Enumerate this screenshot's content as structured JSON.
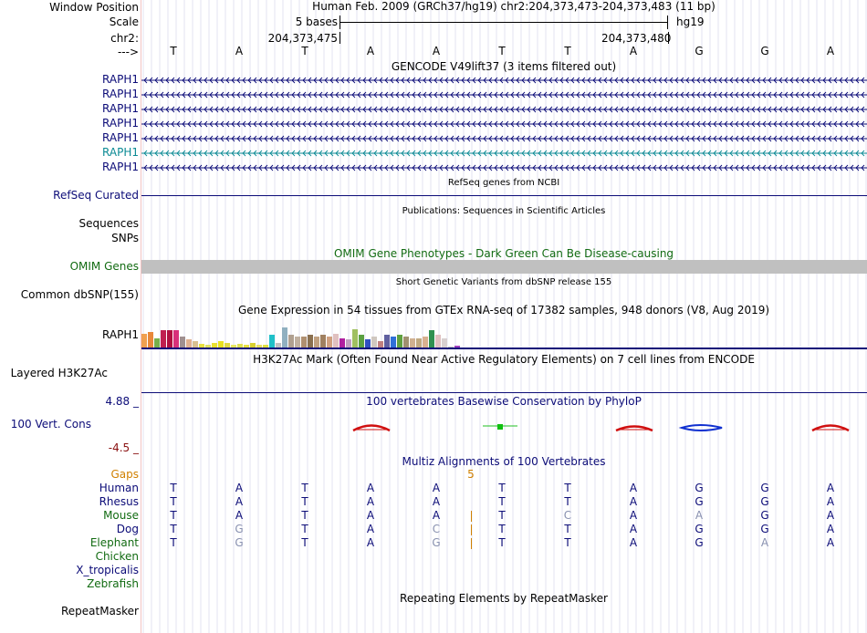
{
  "header": {
    "window_position_label": "Window Position",
    "scale_label": "Scale",
    "chrom_label": "chr2:",
    "arrow_label": "--->",
    "assembly_title": "Human Feb. 2009 (GRCh37/hg19)   chr2:204,373,473-204,373,483 (11 bp)",
    "scale_value": "5 bases",
    "scale_db": "hg19",
    "coord_left": "204,373,475",
    "coord_right": "204,373,480",
    "bases": [
      "T",
      "A",
      "T",
      "A",
      "A",
      "T",
      "T",
      "A",
      "G",
      "G",
      "A"
    ]
  },
  "gencode": {
    "title": "GENCODE V49lift37 (3 items filtered out)",
    "rows": [
      {
        "label": "RAPH1",
        "color": "#0c0c78"
      },
      {
        "label": "RAPH1",
        "color": "#0c0c78"
      },
      {
        "label": "RAPH1",
        "color": "#0c0c78"
      },
      {
        "label": "RAPH1",
        "color": "#0c0c78"
      },
      {
        "label": "RAPH1",
        "color": "#0c0c78"
      },
      {
        "label": "RAPH1",
        "color": "#0b8a94"
      },
      {
        "label": "RAPH1",
        "color": "#0c0c78"
      }
    ]
  },
  "refseq": {
    "label": "RefSeq Curated",
    "title": "RefSeq genes from NCBI"
  },
  "publications": {
    "title": "Publications: Sequences in Scientific Articles",
    "label_sequences": "Sequences",
    "label_snps": "SNPs"
  },
  "omim": {
    "title": "OMIM Gene Phenotypes - Dark Green Can Be Disease-causing",
    "label": "OMIM Genes"
  },
  "dbsnp": {
    "title": "Short Genetic Variants from dbSNP release 155",
    "label": "Common dbSNP(155)"
  },
  "gtex": {
    "title": "Gene Expression in 54 tissues from GTEx RNA-seq of 17382 samples, 948 donors (V8, Aug 2019)",
    "label": "RAPH1",
    "bars": [
      {
        "v": 0.45,
        "c": "#f0a050"
      },
      {
        "v": 0.5,
        "c": "#e8883a"
      },
      {
        "v": 0.3,
        "c": "#77b04a"
      },
      {
        "v": 0.55,
        "c": "#c02050"
      },
      {
        "v": 0.55,
        "c": "#b01040"
      },
      {
        "v": 0.55,
        "c": "#d8307a"
      },
      {
        "v": 0.35,
        "c": "#a09090"
      },
      {
        "v": 0.25,
        "c": "#e0b090"
      },
      {
        "v": 0.2,
        "c": "#d8c090"
      },
      {
        "v": 0.12,
        "c": "#e8e040"
      },
      {
        "v": 0.1,
        "c": "#e0e060"
      },
      {
        "v": 0.15,
        "c": "#e8e030"
      },
      {
        "v": 0.2,
        "c": "#e8e020"
      },
      {
        "v": 0.15,
        "c": "#e0d840"
      },
      {
        "v": 0.1,
        "c": "#e8e860"
      },
      {
        "v": 0.12,
        "c": "#e0e050"
      },
      {
        "v": 0.1,
        "c": "#e8e040"
      },
      {
        "v": 0.15,
        "c": "#d8d030"
      },
      {
        "v": 0.1,
        "c": "#e8e060"
      },
      {
        "v": 0.08,
        "c": "#e0e040"
      },
      {
        "v": 0.4,
        "c": "#20c0c8"
      },
      {
        "v": 0.15,
        "c": "#c0c0c0"
      },
      {
        "v": 0.65,
        "c": "#90b0c0"
      },
      {
        "v": 0.4,
        "c": "#b0a090"
      },
      {
        "v": 0.35,
        "c": "#c0b0a0"
      },
      {
        "v": 0.35,
        "c": "#b09070"
      },
      {
        "v": 0.4,
        "c": "#8a7050"
      },
      {
        "v": 0.35,
        "c": "#c0a080"
      },
      {
        "v": 0.4,
        "c": "#a08060"
      },
      {
        "v": 0.35,
        "c": "#d0a080"
      },
      {
        "v": 0.45,
        "c": "#e0c0c0"
      },
      {
        "v": 0.3,
        "c": "#b020a0"
      },
      {
        "v": 0.25,
        "c": "#c0a0c0"
      },
      {
        "v": 0.6,
        "c": "#a0c060"
      },
      {
        "v": 0.4,
        "c": "#5aa040"
      },
      {
        "v": 0.25,
        "c": "#3050c0"
      },
      {
        "v": 0.35,
        "c": "#d0c8c0"
      },
      {
        "v": 0.2,
        "c": "#c08080"
      },
      {
        "v": 0.4,
        "c": "#6060a0"
      },
      {
        "v": 0.35,
        "c": "#3070d8"
      },
      {
        "v": 0.4,
        "c": "#60a040"
      },
      {
        "v": 0.35,
        "c": "#a09070"
      },
      {
        "v": 0.3,
        "c": "#d0b090"
      },
      {
        "v": 0.3,
        "c": "#c0a880"
      },
      {
        "v": 0.35,
        "c": "#d8b090"
      },
      {
        "v": 0.55,
        "c": "#309050"
      },
      {
        "v": 0.4,
        "c": "#e0c0c0"
      },
      {
        "v": 0.3,
        "c": "#d8d0d0"
      },
      {
        "v": 0.0,
        "c": "#c0c0c0"
      },
      {
        "v": 0.05,
        "c": "#a040c0"
      }
    ]
  },
  "h3k27ac": {
    "title": "H3K27Ac Mark (Often Found Near Active Regulatory Elements) on 7 cell lines from ENCODE",
    "label": "Layered H3K27Ac"
  },
  "conservation": {
    "title": "100 vertebrates Basewise Conservation by PhyloP",
    "label": "100 Vert. Cons",
    "max_label": "4.88 _",
    "min_label": "-4.5 _"
  },
  "multiz": {
    "title": "Multiz Alignments of 100 Vertebrates",
    "gaps_label": "Gaps",
    "gap_count": "5",
    "species": [
      {
        "name": "Human",
        "color": "#0c0c78",
        "bases": [
          "T",
          "A",
          "T",
          "A",
          "A",
          "T",
          "T",
          "A",
          "G",
          "G",
          "A"
        ],
        "dim": []
      },
      {
        "name": "Rhesus",
        "color": "#0c0c78",
        "bases": [
          "T",
          "A",
          "T",
          "A",
          "A",
          "T",
          "T",
          "A",
          "G",
          "G",
          "A"
        ],
        "dim": []
      },
      {
        "name": "Mouse",
        "color": "#126b12",
        "bases": [
          "T",
          "A",
          "T",
          "A",
          "A",
          "T",
          "C",
          "A",
          "A",
          "G",
          "A"
        ],
        "dim": [
          6,
          8
        ]
      },
      {
        "name": "Dog",
        "color": "#0c0c78",
        "bases": [
          "T",
          "G",
          "T",
          "A",
          "C",
          "T",
          "T",
          "A",
          "G",
          "G",
          "A"
        ],
        "dim": [
          1,
          4
        ]
      },
      {
        "name": "Elephant",
        "color": "#126b12",
        "bases": [
          "T",
          "G",
          "T",
          "A",
          "G",
          "T",
          "T",
          "A",
          "G",
          "A",
          "A"
        ],
        "dim": [
          1,
          4,
          9
        ]
      },
      {
        "name": "Chicken",
        "color": "#126b12",
        "bases": [],
        "dim": []
      },
      {
        "name": "X_tropicalis",
        "color": "#0c0c78",
        "bases": [],
        "dim": []
      },
      {
        "name": "Zebrafish",
        "color": "#126b12",
        "bases": [],
        "dim": []
      }
    ]
  },
  "repeatmasker": {
    "title": "Repeating Elements by RepeatMasker",
    "label": "RepeatMasker"
  },
  "colors": {
    "gene_blue": "#0c0c78",
    "omim_green": "#126b12",
    "gaps_orange": "#d08000",
    "divider": "#f2c2c2",
    "grid": "#d0d0e8"
  }
}
